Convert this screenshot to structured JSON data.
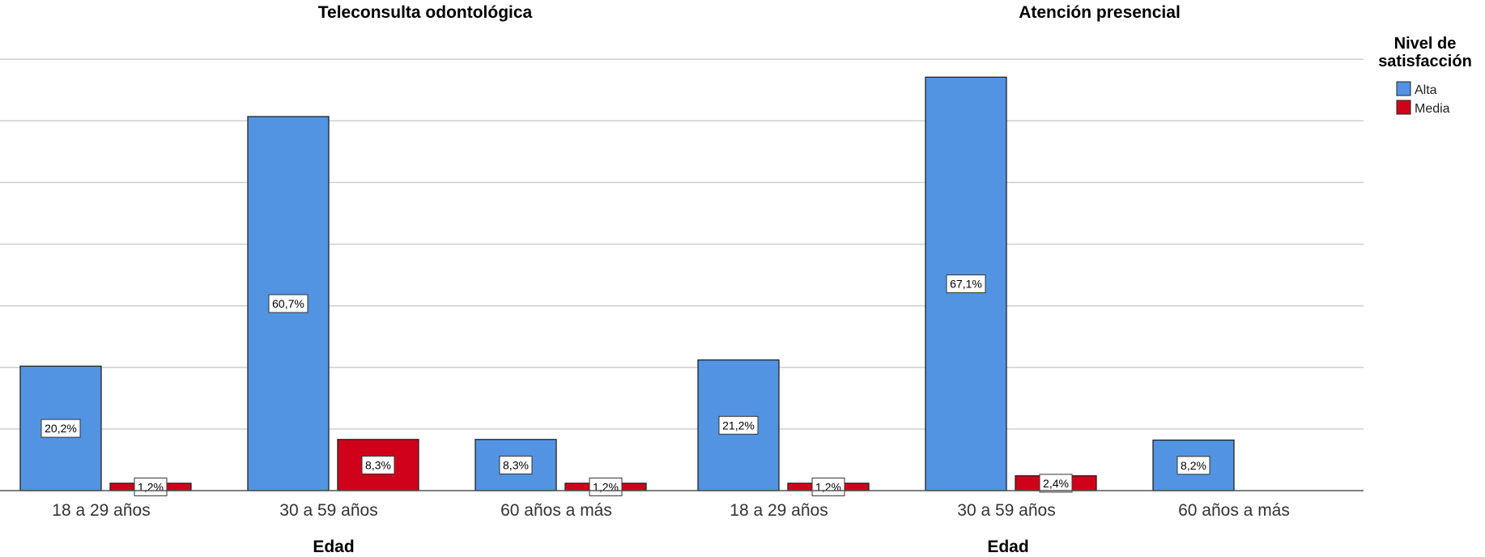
{
  "chart_data": {
    "type": "bar",
    "ylim": [
      0,
      72
    ],
    "grid": true,
    "legend": {
      "title_line1": "Nivel de",
      "title_line2": "satisfacción",
      "placement": "top-right",
      "entries": [
        {
          "name": "Alta",
          "color": "#5294e2"
        },
        {
          "name": "Media",
          "color": "#d0021b"
        }
      ]
    },
    "panels": [
      {
        "title": "Teleconsulta odontológica",
        "xlabel": "Edad",
        "categories": [
          "18 a 29 años",
          "30 a 59 años",
          "60 años a más"
        ],
        "series": [
          {
            "name": "Alta",
            "values": [
              20.2,
              60.7,
              8.3
            ],
            "labels": [
              "20,2%",
              "60,7%",
              "8,3%"
            ]
          },
          {
            "name": "Media",
            "values": [
              1.2,
              8.3,
              1.2
            ],
            "labels": [
              "1,2%",
              "8,3%",
              "1,2%"
            ]
          }
        ]
      },
      {
        "title": "Atención presencial",
        "xlabel": "Edad",
        "categories": [
          "18 a 29 años",
          "30 a 59 años",
          "60 años a más"
        ],
        "series": [
          {
            "name": "Alta",
            "values": [
              21.2,
              67.1,
              8.2
            ],
            "labels": [
              "21,2%",
              "67,1%",
              "8,2%"
            ]
          },
          {
            "name": "Media",
            "values": [
              1.2,
              2.4,
              null
            ],
            "labels": [
              "1,2%",
              "2,4%",
              null
            ]
          }
        ]
      }
    ]
  }
}
